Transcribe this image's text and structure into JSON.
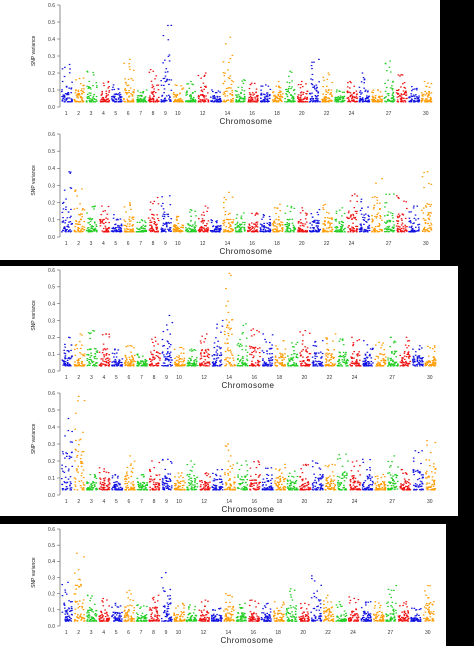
{
  "palette": [
    "#1010e0",
    "#ff9a00",
    "#22cc22",
    "#ee1111"
  ],
  "chart_data": [
    {
      "type": "scatter",
      "title": "",
      "ylabel": "SNP variance",
      "xlabel": "Chromosome",
      "ylim": [
        0,
        0.6
      ],
      "y_ticks": [
        "0.0",
        "0.1",
        "0.2",
        "0.3",
        "0.4",
        "0.5",
        "0.6"
      ],
      "x_ticks": [
        "1",
        "2",
        "3",
        "4",
        "5",
        "6",
        "7",
        "8",
        "9",
        "10",
        "12",
        "14",
        "16",
        "18",
        "20",
        "22",
        "24",
        "27",
        "30"
      ],
      "chromosomes": 30,
      "color_cycle": [
        "blue",
        "orange",
        "green",
        "red"
      ],
      "grid": false,
      "legend": "none",
      "chromosome_peaks": [
        0.25,
        0.17,
        0.21,
        0.15,
        0.13,
        0.28,
        0.1,
        0.22,
        0.48,
        0.13,
        0.15,
        0.2,
        0.1,
        0.41,
        0.16,
        0.14,
        0.13,
        0.15,
        0.21,
        0.15,
        0.28,
        0.2,
        0.1,
        0.15,
        0.2,
        0.1,
        0.27,
        0.19,
        0.12,
        0.15
      ]
    },
    {
      "type": "scatter",
      "title": "",
      "ylabel": "SNP variance",
      "xlabel": "Chromosome",
      "ylim": [
        0,
        0.6
      ],
      "y_ticks": [
        "0.0",
        "0.1",
        "0.2",
        "0.3",
        "0.4",
        "0.5",
        "0.6"
      ],
      "x_ticks": [
        "1",
        "2",
        "3",
        "4",
        "5",
        "6",
        "7",
        "8",
        "9",
        "10",
        "12",
        "14",
        "16",
        "18",
        "20",
        "22",
        "24",
        "27",
        "30"
      ],
      "chromosomes": 30,
      "color_cycle": [
        "blue",
        "orange",
        "green",
        "red"
      ],
      "grid": false,
      "legend": "none",
      "chromosome_peaks": [
        0.38,
        0.28,
        0.18,
        0.18,
        0.13,
        0.2,
        0.1,
        0.23,
        0.24,
        0.12,
        0.16,
        0.18,
        0.1,
        0.26,
        0.14,
        0.14,
        0.13,
        0.19,
        0.18,
        0.17,
        0.16,
        0.19,
        0.17,
        0.25,
        0.22,
        0.34,
        0.25,
        0.24,
        0.18,
        0.38
      ]
    },
    {
      "type": "scatter",
      "title": "",
      "ylabel": "SNP variance",
      "xlabel": "Chromosome",
      "ylim": [
        0,
        0.6
      ],
      "y_ticks": [
        "0.0",
        "0.1",
        "0.2",
        "0.3",
        "0.4",
        "0.5",
        "0.6"
      ],
      "x_ticks": [
        "1",
        "2",
        "3",
        "4",
        "5",
        "6",
        "7",
        "8",
        "9",
        "10",
        "12",
        "14",
        "16",
        "18",
        "20",
        "22",
        "24",
        "27",
        "30"
      ],
      "chromosomes": 30,
      "color_cycle": [
        "blue",
        "orange",
        "green",
        "red"
      ],
      "grid": false,
      "legend": "none",
      "chromosome_peaks": [
        0.2,
        0.22,
        0.24,
        0.22,
        0.13,
        0.15,
        0.1,
        0.2,
        0.33,
        0.14,
        0.13,
        0.22,
        0.3,
        0.58,
        0.28,
        0.25,
        0.22,
        0.18,
        0.17,
        0.24,
        0.18,
        0.22,
        0.19,
        0.2,
        0.18,
        0.17,
        0.2,
        0.2,
        0.15,
        0.15
      ]
    },
    {
      "type": "scatter",
      "title": "",
      "ylabel": "SNP variance",
      "xlabel": "Chromosome",
      "ylim": [
        0,
        0.6
      ],
      "y_ticks": [
        "0.0",
        "0.1",
        "0.2",
        "0.3",
        "0.4",
        "0.5",
        "0.6"
      ],
      "x_ticks": [
        "1",
        "2",
        "3",
        "4",
        "5",
        "6",
        "7",
        "8",
        "9",
        "10",
        "12",
        "14",
        "16",
        "18",
        "20",
        "22",
        "24",
        "27",
        "30"
      ],
      "chromosomes": 30,
      "color_cycle": [
        "blue",
        "orange",
        "green",
        "red"
      ],
      "grid": false,
      "legend": "none",
      "chromosome_peaks": [
        0.45,
        0.58,
        0.12,
        0.16,
        0.12,
        0.23,
        0.12,
        0.2,
        0.21,
        0.13,
        0.2,
        0.13,
        0.15,
        0.3,
        0.2,
        0.2,
        0.16,
        0.18,
        0.14,
        0.18,
        0.2,
        0.18,
        0.24,
        0.2,
        0.21,
        0.12,
        0.23,
        0.15,
        0.26,
        0.32
      ]
    },
    {
      "type": "scatter",
      "title": "",
      "ylabel": "SNP variance",
      "xlabel": "Chromosome",
      "ylim": [
        0,
        0.6
      ],
      "y_ticks": [
        "0.0",
        "0.1",
        "0.2",
        "0.3",
        "0.4",
        "0.5",
        "0.6"
      ],
      "x_ticks": [
        "1",
        "2",
        "3",
        "4",
        "5",
        "6",
        "7",
        "8",
        "9",
        "10",
        "12",
        "14",
        "16",
        "18",
        "20",
        "22",
        "24",
        "27",
        "30"
      ],
      "chromosomes": 30,
      "color_cycle": [
        "blue",
        "orange",
        "green",
        "red"
      ],
      "grid": false,
      "legend": "none",
      "chromosome_peaks": [
        0.27,
        0.45,
        0.19,
        0.17,
        0.14,
        0.22,
        0.13,
        0.19,
        0.33,
        0.14,
        0.13,
        0.16,
        0.11,
        0.2,
        0.14,
        0.16,
        0.14,
        0.15,
        0.23,
        0.14,
        0.31,
        0.19,
        0.15,
        0.18,
        0.15,
        0.15,
        0.25,
        0.15,
        0.11,
        0.25
      ]
    }
  ]
}
